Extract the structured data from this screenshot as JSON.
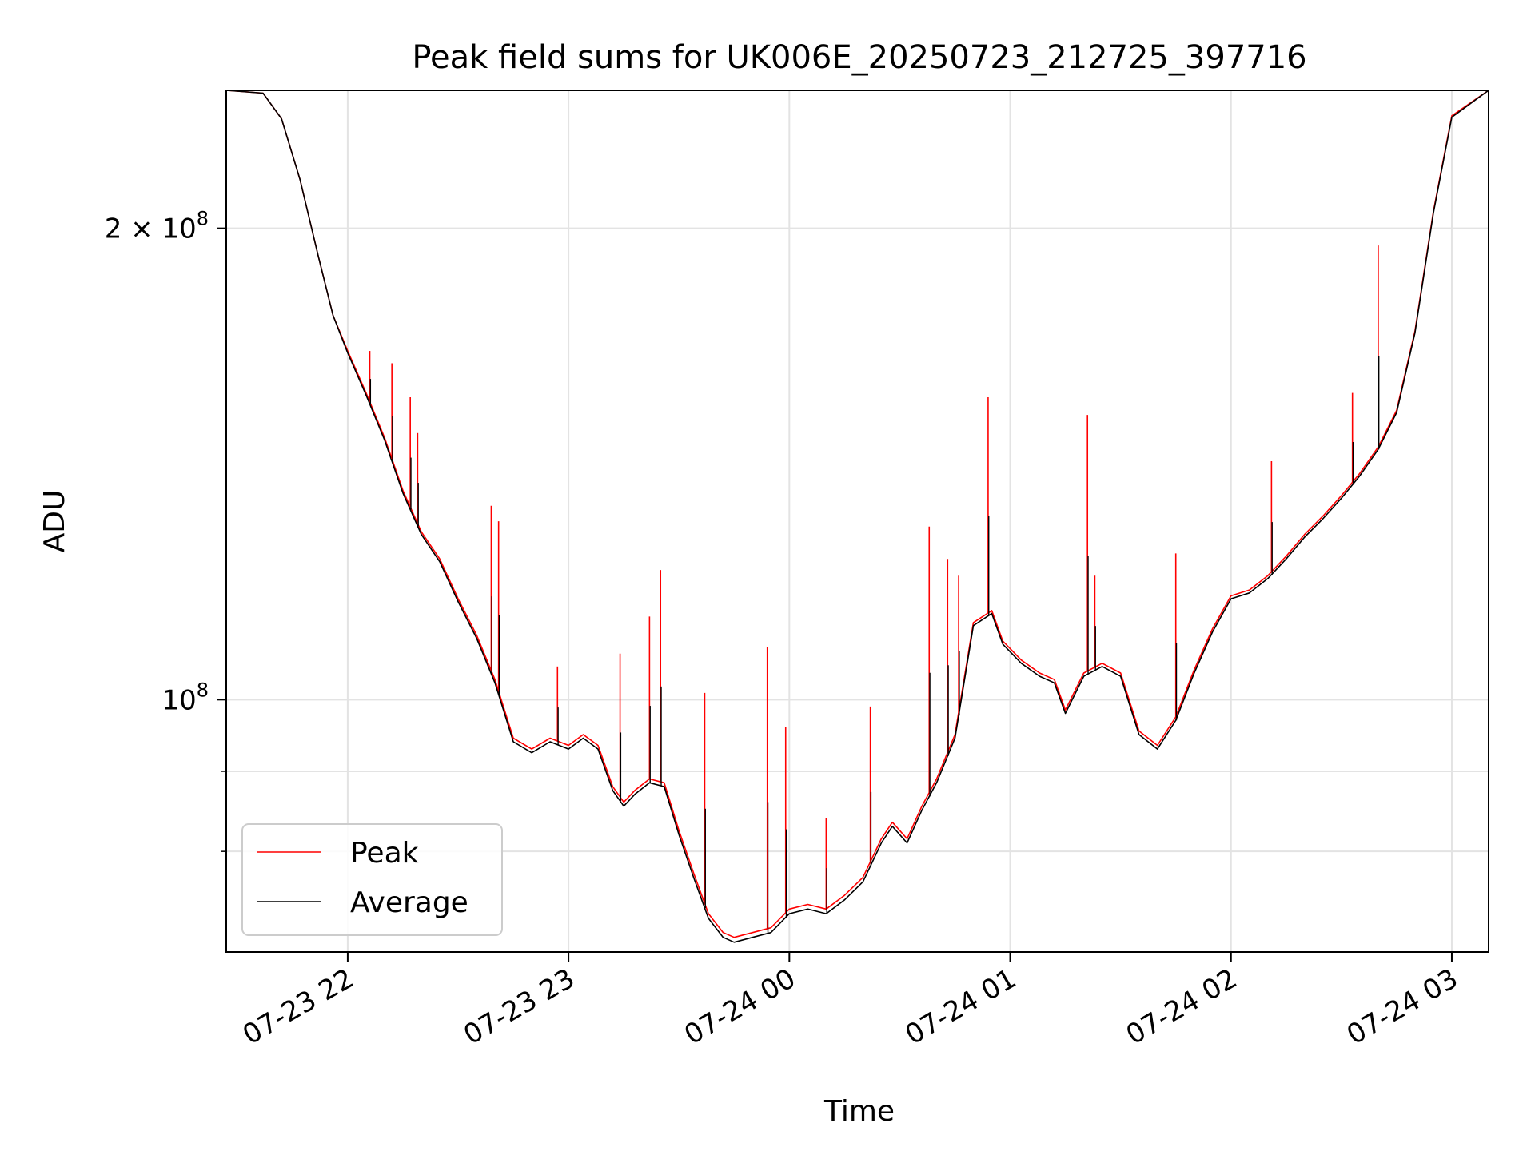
{
  "chart_data": {
    "type": "line",
    "title": "Peak field sums for UK006E_20250723_212725_397716",
    "xlabel": "Time",
    "ylabel": "ADU",
    "yscale": "log",
    "ylim": [
      69000000,
      245000000
    ],
    "xlim": [
      "2025-07-23 21:27",
      "2025-07-24 03:10"
    ],
    "grid": true,
    "legend_position": "lower-left",
    "x_ticks": [
      {
        "t": "2025-07-23 22:00",
        "label": "07-23 22"
      },
      {
        "t": "2025-07-23 23:00",
        "label": "07-23 23"
      },
      {
        "t": "2025-07-24 00:00",
        "label": "07-24 00"
      },
      {
        "t": "2025-07-24 01:00",
        "label": "07-24 01"
      },
      {
        "t": "2025-07-24 02:00",
        "label": "07-24 02"
      },
      {
        "t": "2025-07-24 03:00",
        "label": "07-24 03"
      }
    ],
    "y_ticks": [
      {
        "value": 100000000,
        "base": "10",
        "exp": "8",
        "coef": ""
      },
      {
        "value": 200000000,
        "base": "10",
        "exp": "8",
        "coef": "2 × "
      }
    ],
    "y_minor_ticks": [
      80000000,
      90000000
    ],
    "x": [
      "2025-07-23 21:27",
      "2025-07-23 21:37",
      "2025-07-23 21:42",
      "2025-07-23 21:47",
      "2025-07-23 21:52",
      "2025-07-23 21:56",
      "2025-07-23 22:00",
      "2025-07-23 22:05",
      "2025-07-23 22:10",
      "2025-07-23 22:15",
      "2025-07-23 22:20",
      "2025-07-23 22:25",
      "2025-07-23 22:30",
      "2025-07-23 22:35",
      "2025-07-23 22:40",
      "2025-07-23 22:45",
      "2025-07-23 22:50",
      "2025-07-23 22:55",
      "2025-07-23 23:00",
      "2025-07-23 23:04",
      "2025-07-23 23:08",
      "2025-07-23 23:12",
      "2025-07-23 23:15",
      "2025-07-23 23:18",
      "2025-07-23 23:22",
      "2025-07-23 23:26",
      "2025-07-23 23:30",
      "2025-07-23 23:34",
      "2025-07-23 23:38",
      "2025-07-23 23:42",
      "2025-07-23 23:45",
      "2025-07-23 23:50",
      "2025-07-23 23:55",
      "2025-07-24 00:00",
      "2025-07-24 00:05",
      "2025-07-24 00:10",
      "2025-07-24 00:15",
      "2025-07-24 00:20",
      "2025-07-24 00:25",
      "2025-07-24 00:28",
      "2025-07-24 00:32",
      "2025-07-24 00:36",
      "2025-07-24 00:40",
      "2025-07-24 00:45",
      "2025-07-24 00:50",
      "2025-07-24 00:55",
      "2025-07-24 00:58",
      "2025-07-24 01:03",
      "2025-07-24 01:08",
      "2025-07-24 01:12",
      "2025-07-24 01:15",
      "2025-07-24 01:20",
      "2025-07-24 01:25",
      "2025-07-24 01:30",
      "2025-07-24 01:35",
      "2025-07-24 01:40",
      "2025-07-24 01:45",
      "2025-07-24 01:50",
      "2025-07-24 01:55",
      "2025-07-24 02:00",
      "2025-07-24 02:05",
      "2025-07-24 02:10",
      "2025-07-24 02:15",
      "2025-07-24 02:20",
      "2025-07-24 02:25",
      "2025-07-24 02:30",
      "2025-07-24 02:35",
      "2025-07-24 02:40",
      "2025-07-24 02:45",
      "2025-07-24 02:50",
      "2025-07-24 02:55",
      "2025-07-24 03:00",
      "2025-07-24 03:10"
    ],
    "series": [
      {
        "name": "Peak",
        "color": "#ff0000",
        "values": [
          245000000,
          244000000,
          235000000,
          215000000,
          192000000,
          176000000,
          167000000,
          157000000,
          147000000,
          136000000,
          128000000,
          123000000,
          116000000,
          110000000,
          103000000,
          94500000,
          93000000,
          94500000,
          93500000,
          95000000,
          93500000,
          88000000,
          86000000,
          87500000,
          89000000,
          88500000,
          82500000,
          77500000,
          73000000,
          71000000,
          70500000,
          71000000,
          71500000,
          73500000,
          74000000,
          73500000,
          75000000,
          77000000,
          81500000,
          83500000,
          81500000,
          85500000,
          89000000,
          95000000,
          112000000,
          114000000,
          109000000,
          106000000,
          104000000,
          103000000,
          98500000,
          104000000,
          105500000,
          104000000,
          95500000,
          93500000,
          97500000,
          104500000,
          111000000,
          116500000,
          117500000,
          120000000,
          123500000,
          127500000,
          131000000,
          135000000,
          139500000,
          145000000,
          153000000,
          172000000,
          205000000,
          236000000,
          245000000
        ],
        "spikes": [
          {
            "t": "2025-07-23 22:06",
            "value": 167000000
          },
          {
            "t": "2025-07-23 22:12",
            "value": 164000000
          },
          {
            "t": "2025-07-23 22:17",
            "value": 156000000
          },
          {
            "t": "2025-07-23 22:19",
            "value": 148000000
          },
          {
            "t": "2025-07-23 22:39",
            "value": 133000000
          },
          {
            "t": "2025-07-23 22:41",
            "value": 130000000
          },
          {
            "t": "2025-07-23 22:57",
            "value": 105000000
          },
          {
            "t": "2025-07-23 23:14",
            "value": 107000000
          },
          {
            "t": "2025-07-23 23:22",
            "value": 113000000
          },
          {
            "t": "2025-07-23 23:25",
            "value": 121000000
          },
          {
            "t": "2025-07-23 23:37",
            "value": 101000000
          },
          {
            "t": "2025-07-23 23:54",
            "value": 108000000
          },
          {
            "t": "2025-07-23 23:59",
            "value": 96000000
          },
          {
            "t": "2025-07-24 00:10",
            "value": 84000000
          },
          {
            "t": "2025-07-24 00:22",
            "value": 99000000
          },
          {
            "t": "2025-07-24 00:38",
            "value": 129000000
          },
          {
            "t": "2025-07-24 00:43",
            "value": 123000000
          },
          {
            "t": "2025-07-24 00:46",
            "value": 120000000
          },
          {
            "t": "2025-07-24 00:54",
            "value": 156000000
          },
          {
            "t": "2025-07-24 01:21",
            "value": 152000000
          },
          {
            "t": "2025-07-24 01:23",
            "value": 120000000
          },
          {
            "t": "2025-07-24 01:45",
            "value": 124000000
          },
          {
            "t": "2025-07-24 02:11",
            "value": 142000000
          },
          {
            "t": "2025-07-24 02:33",
            "value": 157000000
          },
          {
            "t": "2025-07-24 02:40",
            "value": 195000000
          }
        ]
      },
      {
        "name": "Average",
        "color": "#000000",
        "values": [
          245000000,
          244000000,
          235000000,
          215000000,
          192000000,
          176000000,
          166500000,
          156500000,
          146500000,
          135500000,
          127500000,
          122500000,
          115500000,
          109500000,
          102500000,
          94000000,
          92500000,
          94000000,
          93000000,
          94500000,
          93000000,
          87500000,
          85500000,
          87000000,
          88500000,
          88000000,
          82000000,
          77000000,
          72500000,
          70500000,
          70000000,
          70500000,
          71000000,
          73000000,
          73500000,
          73000000,
          74500000,
          76500000,
          81000000,
          83000000,
          81000000,
          85000000,
          88500000,
          94500000,
          111500000,
          113500000,
          108500000,
          105500000,
          103500000,
          102500000,
          98000000,
          103500000,
          105000000,
          103500000,
          95000000,
          93000000,
          97000000,
          104000000,
          110500000,
          116000000,
          117000000,
          119500000,
          123000000,
          127000000,
          130500000,
          134500000,
          139000000,
          144500000,
          152500000,
          171500000,
          204500000,
          235500000,
          245000000
        ]
      }
    ]
  }
}
